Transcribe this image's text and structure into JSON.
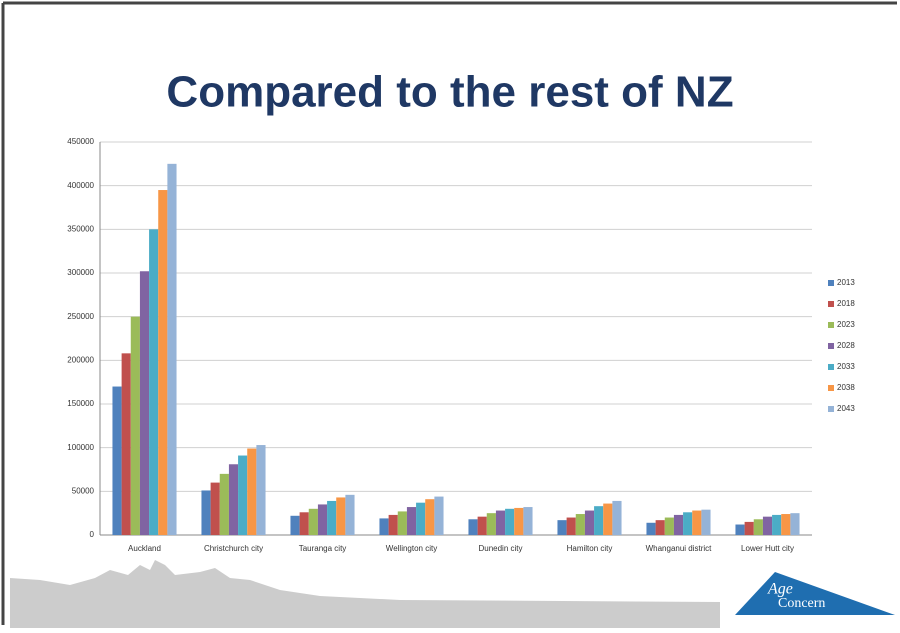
{
  "chart_data": {
    "type": "bar",
    "title": "Compared to the rest of NZ",
    "categories": [
      "Auckland",
      "Christchurch city",
      "Tauranga city",
      "Wellington city",
      "Dunedin city",
      "Hamilton city",
      "Whanganui district",
      "Lower Hutt city"
    ],
    "series": [
      {
        "name": "2013",
        "color": "#4f81bd",
        "values": [
          170000,
          51000,
          22000,
          19000,
          18000,
          17000,
          14000,
          12000
        ]
      },
      {
        "name": "2018",
        "color": "#c0504d",
        "values": [
          208000,
          60000,
          26000,
          23000,
          21000,
          20000,
          17000,
          15000
        ]
      },
      {
        "name": "2023",
        "color": "#9bbb59",
        "values": [
          250000,
          70000,
          30000,
          27000,
          25000,
          24000,
          20000,
          18000
        ]
      },
      {
        "name": "2028",
        "color": "#8064a2",
        "values": [
          302000,
          81000,
          35000,
          32000,
          28000,
          28000,
          23000,
          21000
        ]
      },
      {
        "name": "2033",
        "color": "#4bacc6",
        "values": [
          350000,
          91000,
          39000,
          37000,
          30000,
          33000,
          26000,
          23000
        ]
      },
      {
        "name": "2038",
        "color": "#f79646",
        "values": [
          395000,
          99000,
          43000,
          41000,
          31000,
          36000,
          28000,
          24000
        ]
      },
      {
        "name": "2043",
        "color": "#95b3d7",
        "values": [
          425000,
          103000,
          46000,
          44000,
          32000,
          39000,
          29000,
          25000
        ]
      }
    ],
    "ylim": [
      0,
      450000
    ],
    "yticks": [
      0,
      50000,
      100000,
      150000,
      200000,
      250000,
      300000,
      350000,
      400000,
      450000
    ],
    "grid": true,
    "legend": "right"
  },
  "logo": {
    "line1": "Age",
    "line2": "Concern"
  }
}
